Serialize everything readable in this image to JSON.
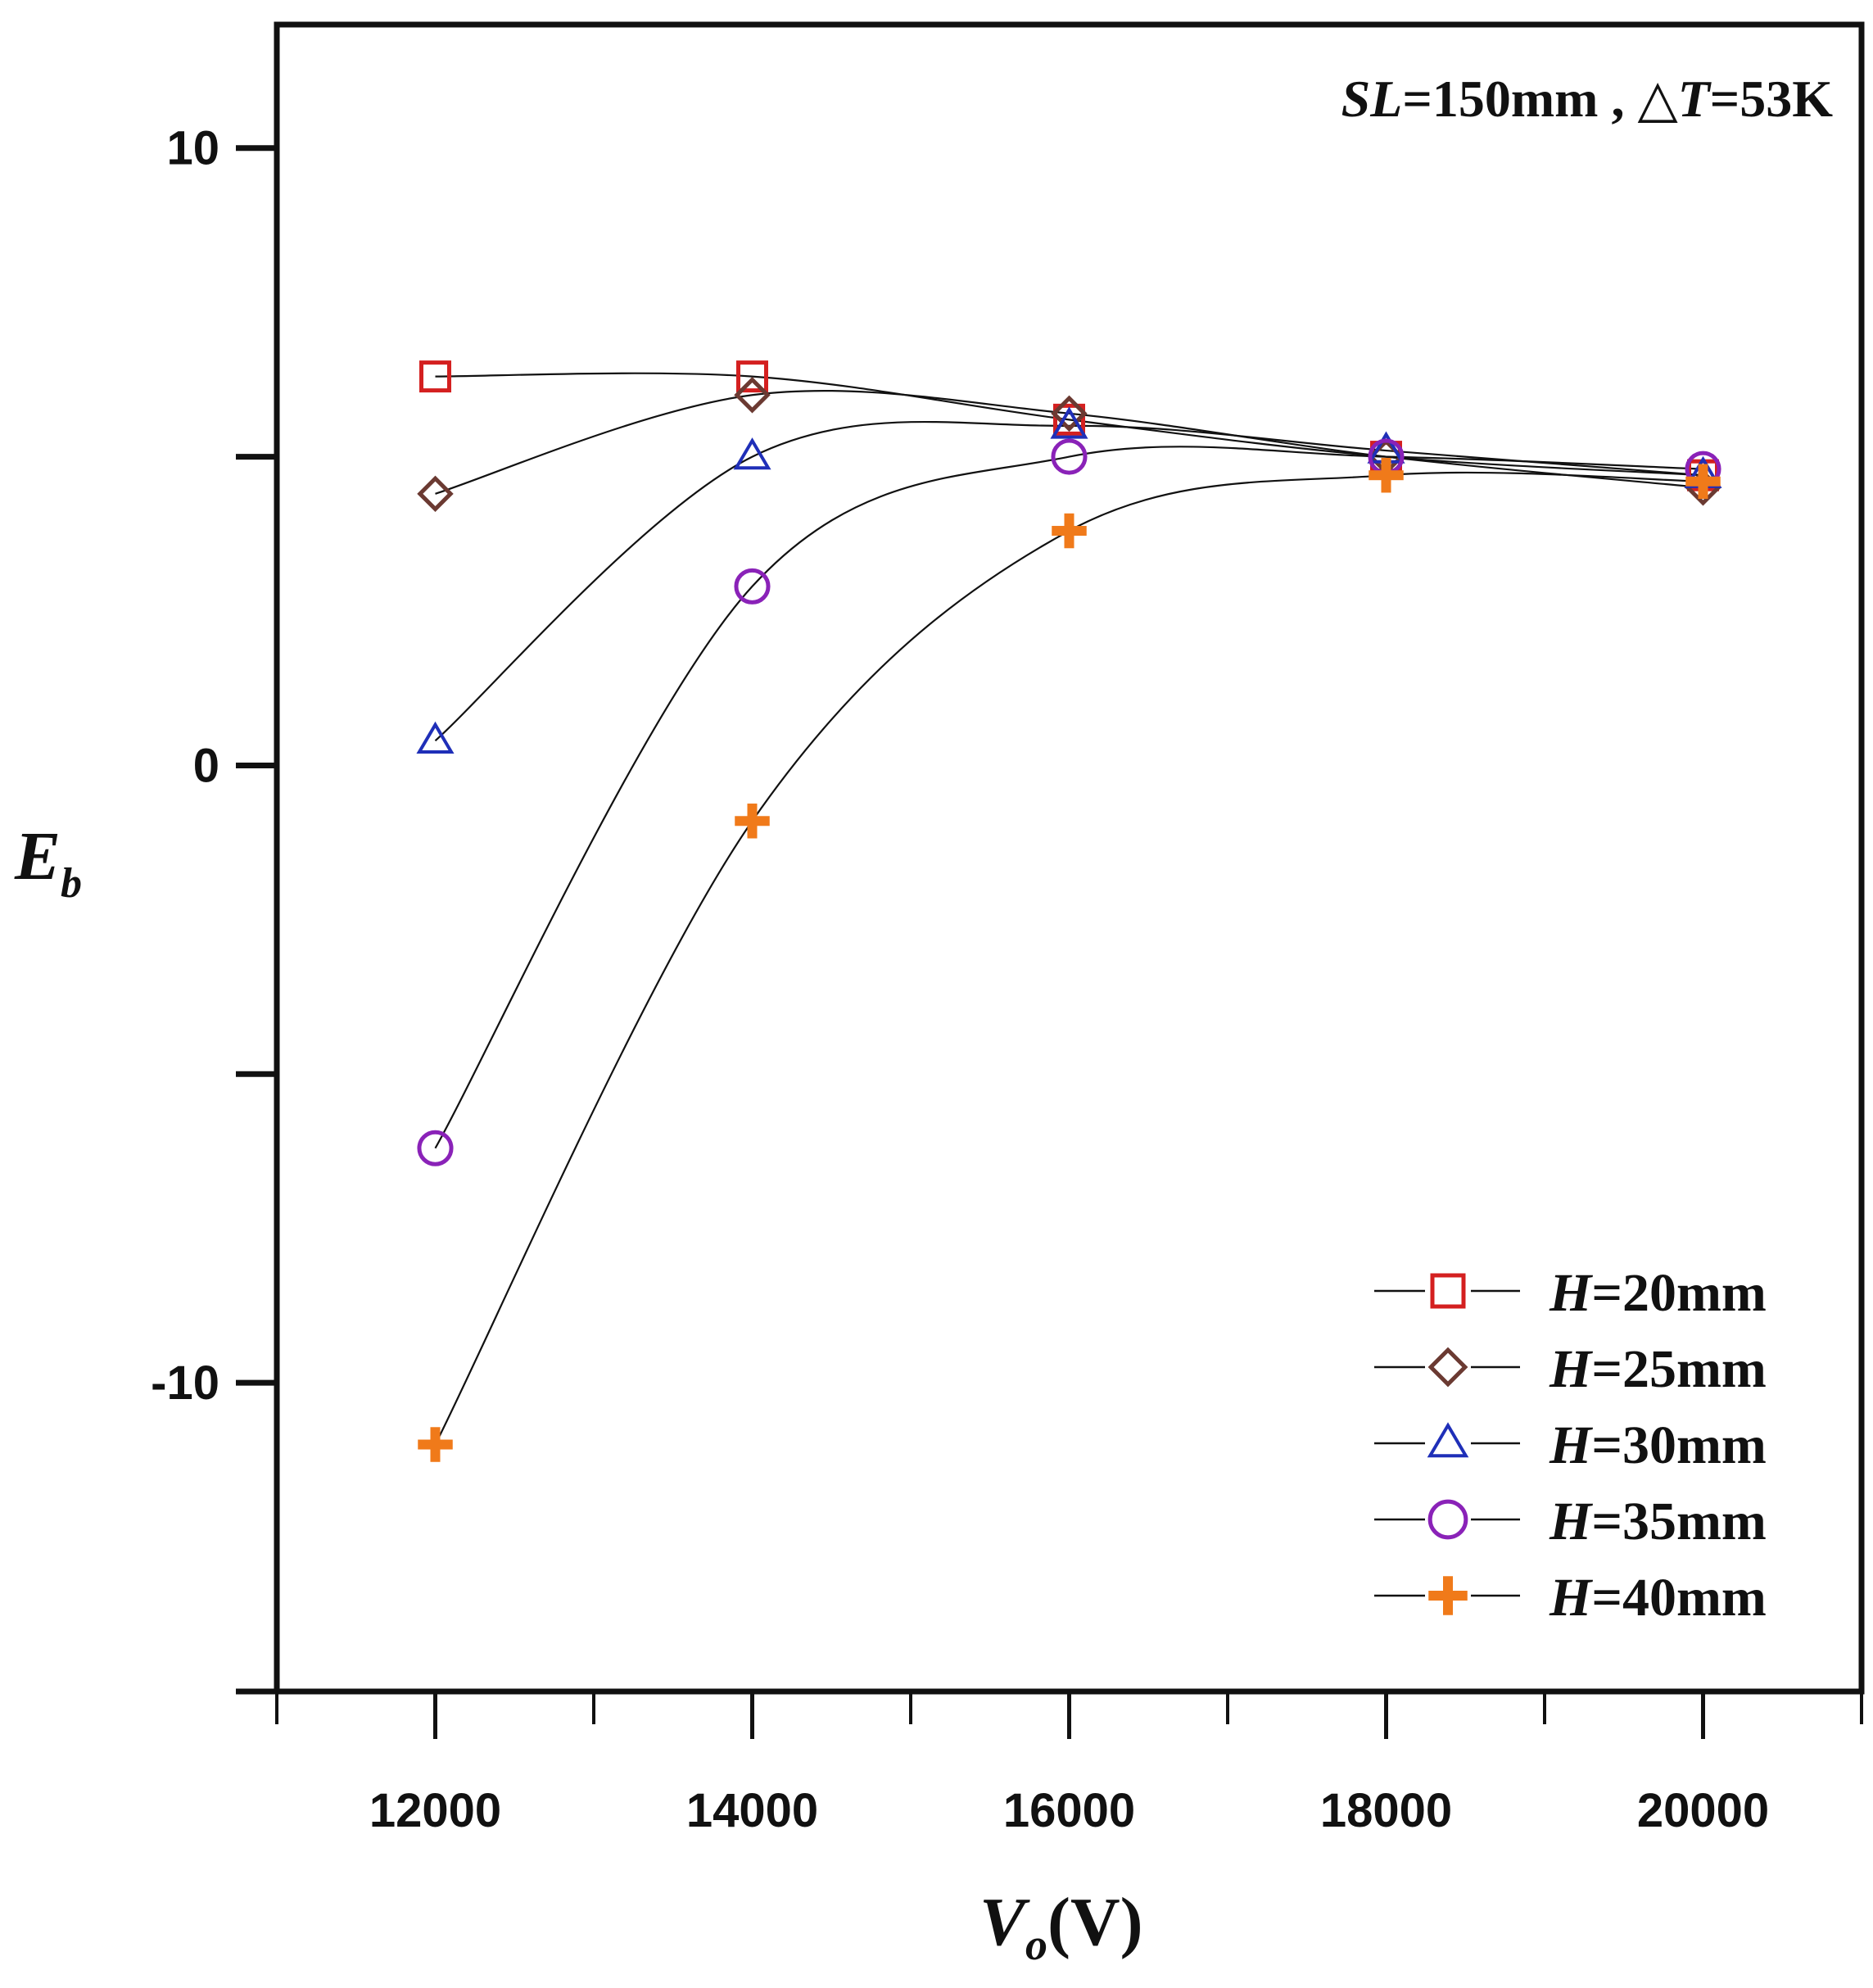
{
  "chart_data": {
    "type": "line",
    "title": "",
    "annotation": {
      "prefix": "SL",
      "rest": "=150mm , △",
      "var": "T",
      "suffix": "=53K"
    },
    "xlabel": {
      "main": "V",
      "sub": "o",
      "units": "(V)"
    },
    "ylabel": {
      "main": "E",
      "sub": "b"
    },
    "xlim": [
      11000,
      21000
    ],
    "ylim": [
      -15,
      12
    ],
    "x_major_ticks": [
      12000,
      14000,
      16000,
      18000,
      20000
    ],
    "x_tick_labels": [
      "12000",
      "14000",
      "16000",
      "18000",
      "20000"
    ],
    "x_minor_ticks": [
      11000,
      13000,
      15000,
      17000,
      19000,
      21000
    ],
    "y_ticks": [
      -15,
      -10,
      -5,
      0,
      5,
      10
    ],
    "y_tick_labels": [
      "",
      "-10",
      "",
      "0",
      "",
      "10"
    ],
    "grid": false,
    "legend_position": "bottom-right",
    "x": [
      12000,
      14000,
      16000,
      18000,
      20000
    ],
    "series": [
      {
        "name": "H=20mm",
        "label_var": "H",
        "label_rest": "=20mm",
        "marker": "square",
        "color": "#d42020",
        "values": [
          6.3,
          6.3,
          5.6,
          5.0,
          4.7
        ]
      },
      {
        "name": "H=25mm",
        "label_var": "H",
        "label_rest": "=25mm",
        "marker": "diamond",
        "color": "#6b3a32",
        "values": [
          4.4,
          6.0,
          5.7,
          5.0,
          4.5
        ]
      },
      {
        "name": "H=30mm",
        "label_var": "H",
        "label_rest": "=30mm",
        "marker": "triangle",
        "color": "#1f2fb8",
        "values": [
          0.4,
          5.0,
          5.5,
          5.1,
          4.7
        ]
      },
      {
        "name": "H=35mm",
        "label_var": "H",
        "label_rest": "=35mm",
        "marker": "circle",
        "color": "#8a22b8",
        "values": [
          -6.2,
          2.9,
          5.0,
          5.0,
          4.8
        ]
      },
      {
        "name": "H=40mm",
        "label_var": "H",
        "label_rest": "=40mm",
        "marker": "plus",
        "color": "#f07a1a",
        "values": [
          -11.0,
          -0.9,
          3.8,
          4.7,
          4.6
        ]
      }
    ]
  }
}
